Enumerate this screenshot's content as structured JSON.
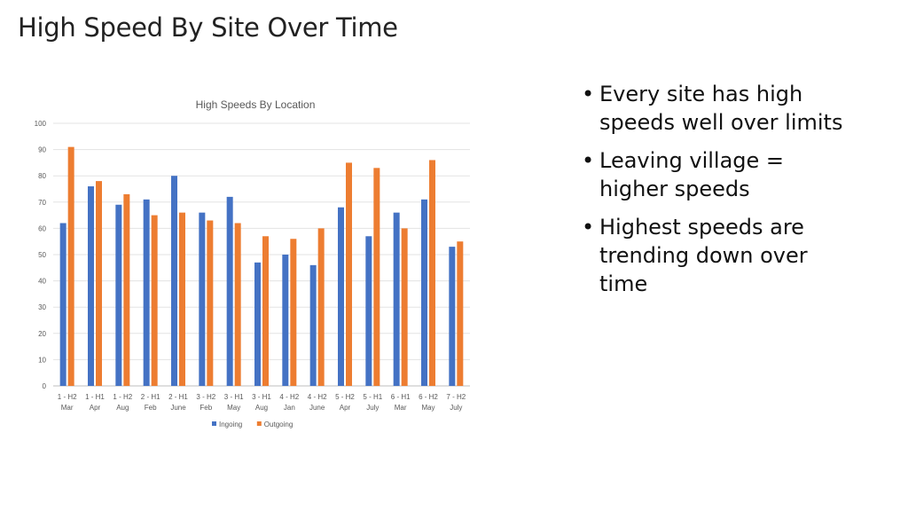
{
  "slide": {
    "title": "High Speed By Site Over Time",
    "bullets": [
      "Every site has high speeds well over limits",
      "Leaving village = higher speeds",
      "Highest speeds are trending down over time"
    ],
    "bullet_glyph": "•"
  },
  "chart_data": {
    "type": "bar",
    "title": "High Speeds By Location",
    "xlabel": "",
    "ylabel": "",
    "ylim": [
      0,
      100
    ],
    "yticks": [
      0,
      10,
      20,
      30,
      40,
      50,
      60,
      70,
      80,
      90,
      100
    ],
    "grid": true,
    "legend_position": "bottom",
    "categories": [
      [
        "1 - H2",
        "Mar"
      ],
      [
        "1 - H1",
        "Apr"
      ],
      [
        "1 - H2",
        "Aug"
      ],
      [
        "2 - H1",
        "Feb"
      ],
      [
        "2 - H1",
        "June"
      ],
      [
        "3 - H2",
        "Feb"
      ],
      [
        "3 - H1",
        "May"
      ],
      [
        "3 - H1",
        "Aug"
      ],
      [
        "4 - H2",
        "Jan"
      ],
      [
        "4 - H2",
        "June"
      ],
      [
        "5 - H2",
        "Apr"
      ],
      [
        "5 - H1",
        "July"
      ],
      [
        "6 - H1",
        "Mar"
      ],
      [
        "6 - H2",
        "May"
      ],
      [
        "7 - H2",
        "July"
      ]
    ],
    "series": [
      {
        "name": "Ingoing",
        "color": "#4472C4",
        "values": [
          62,
          76,
          69,
          71,
          80,
          66,
          72,
          47,
          50,
          46,
          68,
          57,
          66,
          71,
          53
        ]
      },
      {
        "name": "Outgoing",
        "color": "#ED7D31",
        "values": [
          91,
          78,
          73,
          65,
          66,
          63,
          62,
          57,
          56,
          60,
          85,
          83,
          60,
          86,
          55
        ]
      }
    ]
  }
}
